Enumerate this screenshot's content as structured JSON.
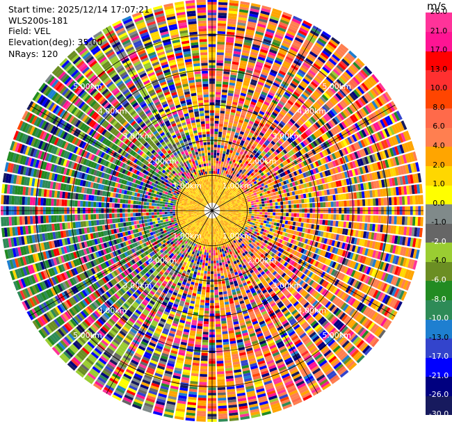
{
  "header": {
    "start_time": "Start time: 2025/12/14 17:07:21",
    "station": "WLS200s-181",
    "field": "Field: VEL",
    "elevation": "Elevation(deg): 35.00",
    "nrays": "NRays: 120"
  },
  "chart_data": {
    "type": "ppi",
    "field": "VEL",
    "units": "m/s",
    "n_rays": 120,
    "elevation_deg": 35.0,
    "max_range_km": 6.0,
    "range_ring_labels": [
      "1.00km",
      "2.00km",
      "3.00km",
      "4.00km",
      "5.00km"
    ],
    "colorbar": {
      "unit": "m/s",
      "bounds": [
        -30.0,
        -26.0,
        -21.0,
        -17.0,
        -13.0,
        -10.0,
        -8.0,
        -6.0,
        -4.0,
        -2.0,
        -1.0,
        0.0,
        1.0,
        2.0,
        4.0,
        6.0,
        8.0,
        10.0,
        13.0,
        17.0,
        21.0,
        26.0
      ],
      "tick_labels": [
        "-30.0",
        "-26.0",
        "-21.0",
        "-17.0",
        "-13.0",
        "-10.0",
        "-8.0",
        "-6.0",
        "-4.0",
        "-2.0",
        "-1.0",
        "0.0",
        "1.0",
        "2.0",
        "4.0",
        "6.0",
        "8.0",
        "10.0",
        "13.0",
        "17.0",
        "21.0",
        "26.0"
      ],
      "colors": [
        "#171a5e",
        "#000080",
        "#0000ff",
        "#3344cc",
        "#1e7fd0",
        "#2e8b57",
        "#228b22",
        "#6b8e23",
        "#9acd32",
        "#666666",
        "#808a8a",
        "#ffff00",
        "#ffd700",
        "#ffa500",
        "#ff7f50",
        "#ff6a4a",
        "#ff4500",
        "#ff3030",
        "#ff0000",
        "#ff1493",
        "#ff3399"
      ]
    }
  }
}
